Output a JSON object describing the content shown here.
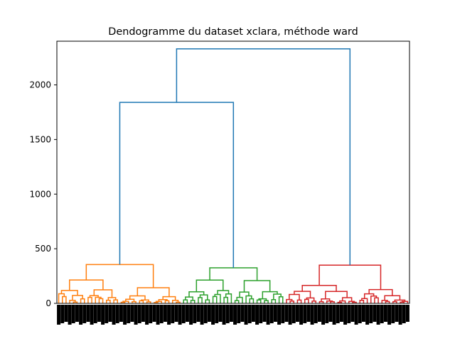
{
  "chart_data": {
    "type": "dendrogram",
    "title": "Dendogramme du dataset xclara, méthode ward",
    "xlabel": "",
    "ylabel": "",
    "ylim": [
      0,
      2400
    ],
    "yticks": [
      0,
      500,
      1000,
      1500,
      2000
    ],
    "grid": false,
    "legend": "none",
    "top_links": [
      {
        "name": "root",
        "height": 2330,
        "color": "#1f77b4"
      },
      {
        "name": "orange-green-merge",
        "height": 1840,
        "color": "#1f77b4"
      }
    ],
    "clusters": [
      {
        "name": "C1",
        "color": "#ff7f0e",
        "merge_height": 355
      },
      {
        "name": "C2",
        "color": "#2ca02c",
        "merge_height": 325
      },
      {
        "name": "C3",
        "color": "#d62728",
        "merge_height": 350
      }
    ]
  }
}
